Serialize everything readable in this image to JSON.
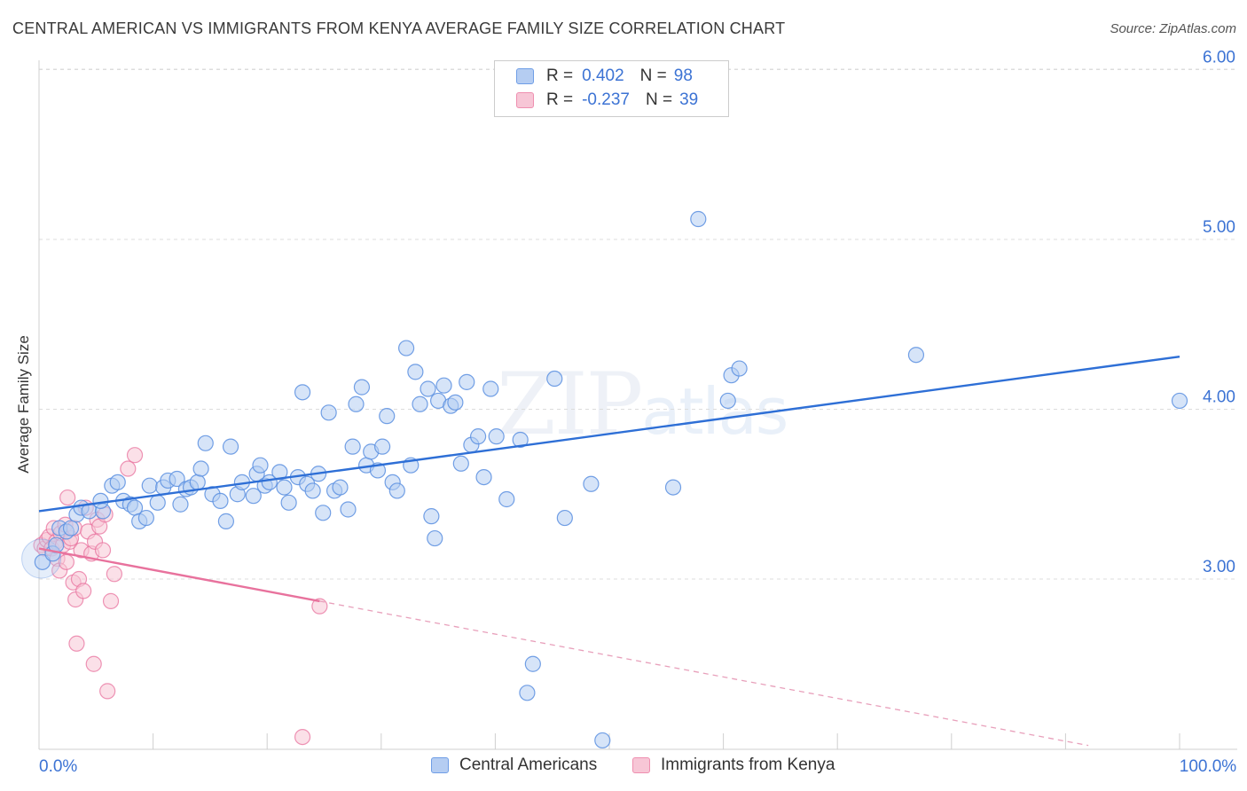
{
  "title": "CENTRAL AMERICAN VS IMMIGRANTS FROM KENYA AVERAGE FAMILY SIZE CORRELATION CHART",
  "source": "Source: ZipAtlas.com",
  "watermark": {
    "zip": "ZIP",
    "atlas": "atlas"
  },
  "legend": {
    "rows": [
      {
        "r_label": "R =",
        "r_value": "0.402",
        "n_label": "N =",
        "n_value": "98",
        "color": "#5b8fe0"
      },
      {
        "r_label": "R =",
        "r_value": "-0.237",
        "n_label": "N =",
        "n_value": "39",
        "color": "#e8729d"
      }
    ]
  },
  "bottom_legend": [
    {
      "label": "Central Americans",
      "color": "#5b8fe0"
    },
    {
      "label": "Immigrants from Kenya",
      "color": "#e8729d"
    }
  ],
  "chart_data": {
    "type": "scatter",
    "title": "CENTRAL AMERICAN VS IMMIGRANTS FROM KENYA AVERAGE FAMILY SIZE CORRELATION CHART",
    "xlabel": "",
    "ylabel": "Average Family Size",
    "xlim": [
      0,
      100
    ],
    "ylim": [
      2.05,
      6.1
    ],
    "x_tick_labels": [
      {
        "value": 0,
        "label": "0.0%"
      },
      {
        "value": 100,
        "label": "100.0%"
      }
    ],
    "y_ticks": [
      {
        "value": 3.0,
        "label": "3.00"
      },
      {
        "value": 4.0,
        "label": "4.00"
      },
      {
        "value": 5.0,
        "label": "5.00"
      },
      {
        "value": 6.0,
        "label": "6.00"
      }
    ],
    "grid": true,
    "series": [
      {
        "name": "Central Americans",
        "color": "#5b8fe0",
        "fill": "#b5cdf2",
        "trend": {
          "x": [
            0,
            100
          ],
          "y": [
            3.4,
            4.31
          ],
          "style": "solid"
        },
        "points": [
          [
            0.3,
            3.1
          ],
          [
            1.2,
            3.15
          ],
          [
            1.5,
            3.2
          ],
          [
            1.8,
            3.3
          ],
          [
            2.4,
            3.28
          ],
          [
            2.8,
            3.3
          ],
          [
            3.3,
            3.38
          ],
          [
            3.7,
            3.42
          ],
          [
            4.4,
            3.4
          ],
          [
            5.6,
            3.4
          ],
          [
            5.4,
            3.46
          ],
          [
            6.4,
            3.55
          ],
          [
            6.9,
            3.57
          ],
          [
            7.4,
            3.46
          ],
          [
            8.0,
            3.44
          ],
          [
            8.4,
            3.42
          ],
          [
            8.8,
            3.34
          ],
          [
            9.4,
            3.36
          ],
          [
            9.7,
            3.55
          ],
          [
            10.4,
            3.45
          ],
          [
            10.9,
            3.54
          ],
          [
            11.3,
            3.58
          ],
          [
            12.1,
            3.59
          ],
          [
            12.4,
            3.44
          ],
          [
            12.9,
            3.53
          ],
          [
            13.3,
            3.54
          ],
          [
            13.9,
            3.57
          ],
          [
            14.2,
            3.65
          ],
          [
            14.6,
            3.8
          ],
          [
            15.2,
            3.5
          ],
          [
            15.9,
            3.46
          ],
          [
            16.4,
            3.34
          ],
          [
            16.8,
            3.78
          ],
          [
            17.4,
            3.5
          ],
          [
            17.8,
            3.57
          ],
          [
            18.8,
            3.49
          ],
          [
            19.1,
            3.62
          ],
          [
            19.4,
            3.67
          ],
          [
            19.8,
            3.55
          ],
          [
            20.2,
            3.57
          ],
          [
            21.1,
            3.63
          ],
          [
            21.5,
            3.54
          ],
          [
            21.9,
            3.45
          ],
          [
            22.7,
            3.6
          ],
          [
            23.1,
            4.1
          ],
          [
            23.5,
            3.56
          ],
          [
            24.0,
            3.52
          ],
          [
            24.5,
            3.62
          ],
          [
            24.9,
            3.39
          ],
          [
            25.4,
            3.98
          ],
          [
            25.9,
            3.52
          ],
          [
            26.4,
            3.54
          ],
          [
            27.1,
            3.41
          ],
          [
            27.5,
            3.78
          ],
          [
            27.8,
            4.03
          ],
          [
            28.3,
            4.13
          ],
          [
            28.7,
            3.67
          ],
          [
            29.1,
            3.75
          ],
          [
            29.7,
            3.64
          ],
          [
            30.1,
            3.78
          ],
          [
            30.5,
            3.96
          ],
          [
            31.0,
            3.57
          ],
          [
            31.4,
            3.52
          ],
          [
            32.2,
            4.36
          ],
          [
            32.6,
            3.67
          ],
          [
            33.0,
            4.22
          ],
          [
            33.4,
            4.03
          ],
          [
            34.1,
            4.12
          ],
          [
            34.4,
            3.37
          ],
          [
            34.7,
            3.24
          ],
          [
            35.0,
            4.05
          ],
          [
            35.5,
            4.14
          ],
          [
            36.1,
            4.02
          ],
          [
            36.5,
            4.04
          ],
          [
            37.0,
            3.68
          ],
          [
            37.5,
            4.16
          ],
          [
            37.9,
            3.79
          ],
          [
            38.5,
            3.84
          ],
          [
            39.0,
            3.6
          ],
          [
            39.6,
            4.12
          ],
          [
            40.1,
            3.84
          ],
          [
            41.0,
            3.47
          ],
          [
            42.2,
            3.82
          ],
          [
            42.8,
            2.33
          ],
          [
            43.3,
            2.5
          ],
          [
            45.2,
            4.18
          ],
          [
            46.1,
            3.36
          ],
          [
            48.4,
            3.56
          ],
          [
            49.4,
            2.05
          ],
          [
            55.6,
            3.54
          ],
          [
            57.8,
            5.12
          ],
          [
            60.4,
            4.05
          ],
          [
            60.7,
            4.2
          ],
          [
            61.4,
            4.24
          ],
          [
            76.9,
            4.32
          ],
          [
            100.0,
            4.05
          ]
        ]
      },
      {
        "name": "Immigrants from Kenya",
        "color": "#e8729d",
        "fill": "#f7c6d6",
        "trend": {
          "x": [
            0,
            24.6
          ],
          "y": [
            3.18,
            2.87
          ],
          "style": "solid"
        },
        "trend_extension": {
          "x": [
            24.6,
            92
          ],
          "y": [
            2.87,
            2.02
          ],
          "style": "dashed"
        },
        "points": [
          [
            0.2,
            3.2
          ],
          [
            0.5,
            3.18
          ],
          [
            0.7,
            3.23
          ],
          [
            0.9,
            3.25
          ],
          [
            1.1,
            3.18
          ],
          [
            1.3,
            3.3
          ],
          [
            1.5,
            3.22
          ],
          [
            1.6,
            3.12
          ],
          [
            1.8,
            3.05
          ],
          [
            1.9,
            3.27
          ],
          [
            2.1,
            3.2
          ],
          [
            2.3,
            3.32
          ],
          [
            2.4,
            3.1
          ],
          [
            2.5,
            3.48
          ],
          [
            2.7,
            3.22
          ],
          [
            2.8,
            3.24
          ],
          [
            3.0,
            2.98
          ],
          [
            3.1,
            3.3
          ],
          [
            3.2,
            2.88
          ],
          [
            3.3,
            2.62
          ],
          [
            3.5,
            3.0
          ],
          [
            3.7,
            3.17
          ],
          [
            3.9,
            2.93
          ],
          [
            4.1,
            3.42
          ],
          [
            4.3,
            3.28
          ],
          [
            4.6,
            3.15
          ],
          [
            4.8,
            2.5
          ],
          [
            4.9,
            3.22
          ],
          [
            5.1,
            3.35
          ],
          [
            5.3,
            3.31
          ],
          [
            5.6,
            3.17
          ],
          [
            5.8,
            3.38
          ],
          [
            6.0,
            2.34
          ],
          [
            6.3,
            2.87
          ],
          [
            6.6,
            3.03
          ],
          [
            7.8,
            3.65
          ],
          [
            8.4,
            3.73
          ],
          [
            23.1,
            2.07
          ],
          [
            24.6,
            2.84
          ]
        ]
      }
    ]
  }
}
